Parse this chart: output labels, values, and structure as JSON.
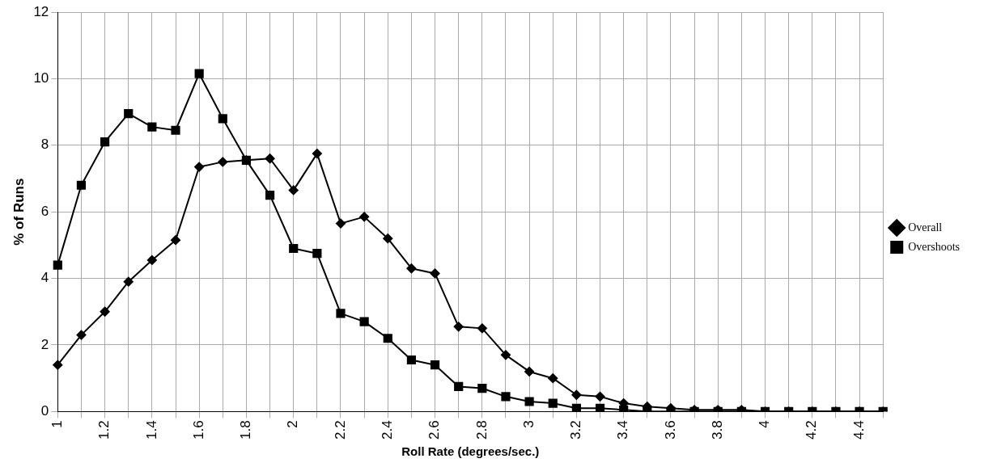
{
  "chart_data": {
    "type": "line",
    "xlabel": "Roll Rate (degrees/sec.)",
    "ylabel": "% of Runs",
    "categories": [
      "1",
      null,
      "1.2",
      null,
      "1.4",
      null,
      "1.6",
      null,
      "1.8",
      null,
      "2",
      null,
      "2.2",
      null,
      "2.4",
      null,
      "2.6",
      null,
      "2.8",
      null,
      "3",
      null,
      "3.2",
      null,
      "3.4",
      null,
      "3.6",
      null,
      "3.8",
      null,
      "4",
      null,
      "4.2",
      null,
      "4.4",
      null
    ],
    "series": [
      {
        "name": "Overall",
        "color": "#000000",
        "marker": "diamond",
        "values": [
          1.4,
          2.3,
          3.0,
          3.9,
          4.55,
          5.15,
          7.35,
          7.5,
          7.55,
          7.6,
          6.65,
          7.75,
          5.65,
          5.85,
          5.2,
          4.3,
          4.15,
          2.55,
          2.5,
          1.7,
          1.2,
          1.0,
          0.5,
          0.45,
          0.25,
          0.15,
          0.1,
          0.05,
          0.05,
          0.05,
          0,
          0,
          0,
          0,
          0,
          0
        ]
      },
      {
        "name": "Overshoots",
        "color": "#000000",
        "marker": "square",
        "values": [
          4.4,
          6.8,
          8.1,
          8.95,
          8.55,
          8.45,
          10.15,
          8.8,
          7.55,
          6.5,
          4.9,
          4.75,
          2.95,
          2.7,
          2.2,
          1.55,
          1.4,
          0.75,
          0.7,
          0.45,
          0.3,
          0.25,
          0.1,
          0.1,
          0.05,
          0,
          0,
          0,
          0,
          0,
          0,
          0,
          0,
          0,
          0,
          0
        ]
      }
    ],
    "ylim": [
      0,
      12
    ],
    "yticks": [
      0,
      2,
      4,
      6,
      8,
      10,
      12
    ],
    "grid": true,
    "legend": "right"
  }
}
